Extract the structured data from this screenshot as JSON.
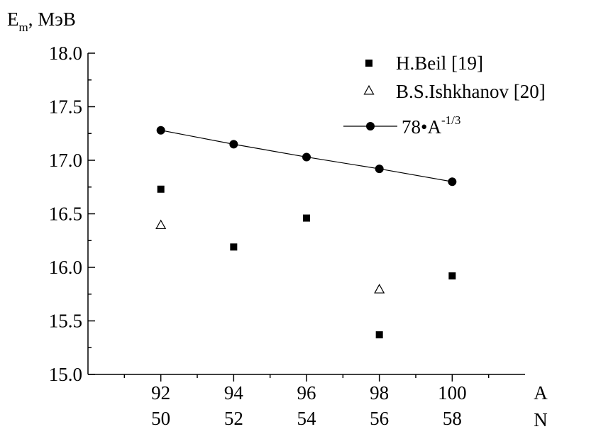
{
  "chart_data": {
    "type": "scatter",
    "ylabel": {
      "symbol": "E",
      "subscript": "m",
      "unit": ", МэВ"
    },
    "xlabel_top": "A",
    "xlabel_bottom": "N",
    "xlim": [
      90,
      102
    ],
    "ylim": [
      15.0,
      18.0
    ],
    "y_ticks": [
      15.0,
      15.5,
      16.0,
      16.5,
      17.0,
      17.5,
      18.0
    ],
    "y_tick_labels": [
      "15.0",
      "15.5",
      "16.0",
      "16.5",
      "17.0",
      "17.5",
      "18.0"
    ],
    "x_ticks": [
      92,
      94,
      96,
      98,
      100
    ],
    "x_tick_labels_A": [
      "92",
      "94",
      "96",
      "98",
      "100"
    ],
    "x_tick_labels_N": [
      "50",
      "52",
      "54",
      "56",
      "58"
    ],
    "grid": false,
    "legend_position": "top-right",
    "series": [
      {
        "name": "H.Beil [19]",
        "marker": "filled-square",
        "x": [
          92,
          94,
          96,
          98,
          100
        ],
        "y": [
          16.73,
          16.19,
          16.46,
          15.37,
          15.92
        ]
      },
      {
        "name": "B.S.Ishkhanov [20]",
        "marker": "open-triangle",
        "x": [
          92,
          98
        ],
        "y": [
          16.4,
          15.8
        ]
      },
      {
        "name_main": "78•A",
        "name_sup": "-1/3",
        "marker": "filled-circle",
        "line": true,
        "x": [
          92,
          94,
          96,
          98,
          100
        ],
        "y": [
          17.28,
          17.15,
          17.03,
          16.92,
          16.8
        ]
      }
    ]
  }
}
